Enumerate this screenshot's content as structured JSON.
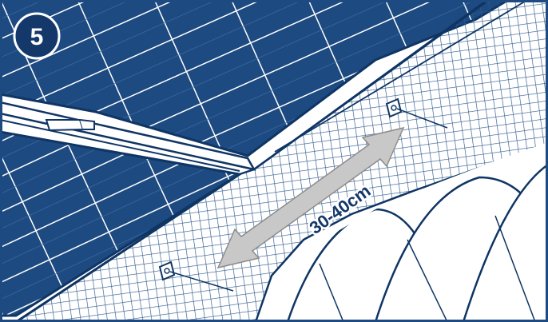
{
  "illustration": {
    "step_number": "5",
    "spacing_label": "30-40cm"
  },
  "colors": {
    "panel_blue": "#1d4a80",
    "line_navy": "#0f3564",
    "mesh": "#2d5a8e",
    "arrow_grey": "#c8c8c8",
    "background": "#ffffff"
  },
  "icons": [
    "step-badge-icon",
    "double-arrow-icon",
    "fixing-clip-icon"
  ]
}
